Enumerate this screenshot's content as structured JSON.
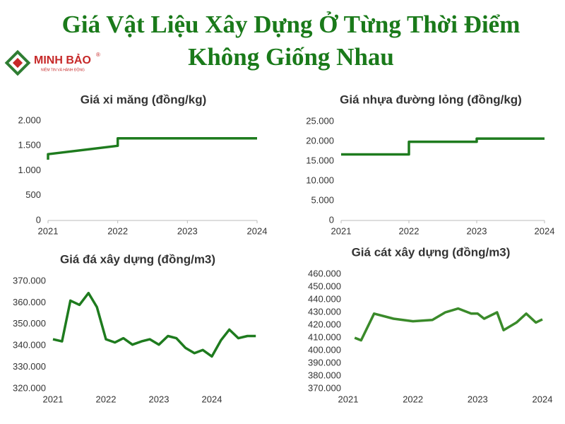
{
  "header": {
    "title_lines": [
      "Giá Vật Liệu Xây Dựng Ở Từng Thời Điểm",
      "Không Giống Nhau"
    ]
  },
  "logo": {
    "name": "MINH BẢO",
    "mark": "®",
    "tagline": "NIỀM TIN VÀ HÀNH ĐỘNG"
  },
  "chart_data": [
    {
      "type": "line",
      "title": "Giá xi măng (đồng/kg)",
      "color": "#1e7b1e",
      "x": [
        2021,
        2021,
        2022,
        2022,
        2024
      ],
      "values": [
        1220,
        1330,
        1500,
        1650,
        1650
      ],
      "xlim": [
        2021,
        2024
      ],
      "xticks": [
        2021,
        2022,
        2023,
        2024
      ],
      "ylim": [
        0,
        2000
      ],
      "yticks": [
        0,
        500,
        {
          "value": 1000,
          "label": "1.000"
        },
        {
          "value": 1500,
          "label": "1.500"
        },
        {
          "value": 2000,
          "label": "2.000"
        }
      ]
    },
    {
      "type": "line",
      "title": "Giá nhựa đường lỏng (đồng/kg)",
      "color": "#1e7b1e",
      "x": [
        2021,
        2022,
        2022,
        2023,
        2023,
        2024
      ],
      "values": [
        16700,
        16700,
        19900,
        19900,
        20700,
        20700
      ],
      "xlim": [
        2021,
        2024
      ],
      "xticks": [
        2021,
        2022,
        2023,
        2024
      ],
      "ylim": [
        0,
        25000
      ],
      "yticks": [
        0,
        {
          "value": 5000,
          "label": "5.000"
        },
        {
          "value": 10000,
          "label": "10.000"
        },
        {
          "value": 15000,
          "label": "15.000"
        },
        {
          "value": 20000,
          "label": "20.000"
        },
        {
          "value": 25000,
          "label": "25.000"
        }
      ]
    },
    {
      "type": "line",
      "title": "Giá đá xây dựng (đồng/m3)",
      "color": "#1e7b1e",
      "x": [
        2021,
        2021.17,
        2021.33,
        2021.5,
        2021.67,
        2021.83,
        2022,
        2022.17,
        2022.33,
        2022.5,
        2022.67,
        2022.83,
        2023,
        2023.17,
        2023.33,
        2023.5,
        2023.67,
        2023.83,
        2024,
        2024.17,
        2024.33,
        2024.5,
        2024.67,
        2024.83
      ],
      "values": [
        343000,
        342000,
        361000,
        359000,
        364500,
        358000,
        343000,
        341500,
        343500,
        340500,
        342000,
        343000,
        340500,
        344500,
        343500,
        339000,
        336500,
        338000,
        335000,
        342500,
        347500,
        343500,
        344500,
        344500
      ],
      "xlim": [
        2021,
        2025
      ],
      "xticks": [
        2021,
        2022,
        2023,
        2024
      ],
      "ylim": [
        320000,
        370000
      ],
      "yticks": [
        {
          "value": 320000,
          "label": "320.000"
        },
        {
          "value": 330000,
          "label": "330.000"
        },
        {
          "value": 340000,
          "label": "340.000"
        },
        {
          "value": 350000,
          "label": "350.000"
        },
        {
          "value": 360000,
          "label": "360.000"
        },
        {
          "value": 370000,
          "label": "370.000"
        }
      ]
    },
    {
      "type": "line",
      "title": "Giá cát xây dựng (đồng/m3)",
      "color": "#3a8a2a",
      "x": [
        2021.1,
        2021.2,
        2021.4,
        2021.7,
        2022,
        2022.3,
        2022.5,
        2022.7,
        2022.9,
        2023,
        2023.1,
        2023.3,
        2023.4,
        2023.6,
        2023.75,
        2023.9,
        2024
      ],
      "values": [
        410000,
        408000,
        429000,
        425000,
        423000,
        424000,
        430000,
        433000,
        429000,
        429000,
        425000,
        430000,
        416000,
        422000,
        429000,
        422000,
        424500
      ],
      "xlim": [
        2021,
        2024
      ],
      "xticks": [
        2021,
        2022,
        2023,
        2024
      ],
      "ylim": [
        370000,
        460000
      ],
      "yticks": [
        {
          "value": 370000,
          "label": "370.000"
        },
        {
          "value": 380000,
          "label": "380.000"
        },
        {
          "value": 390000,
          "label": "390.000"
        },
        {
          "value": 400000,
          "label": "400.000"
        },
        {
          "value": 410000,
          "label": "410.000"
        },
        {
          "value": 420000,
          "label": "420.000"
        },
        {
          "value": 430000,
          "label": "430.000"
        },
        {
          "value": 440000,
          "label": "440.000"
        },
        {
          "value": 450000,
          "label": "450.000"
        },
        {
          "value": 460000,
          "label": "460.000"
        }
      ]
    }
  ]
}
